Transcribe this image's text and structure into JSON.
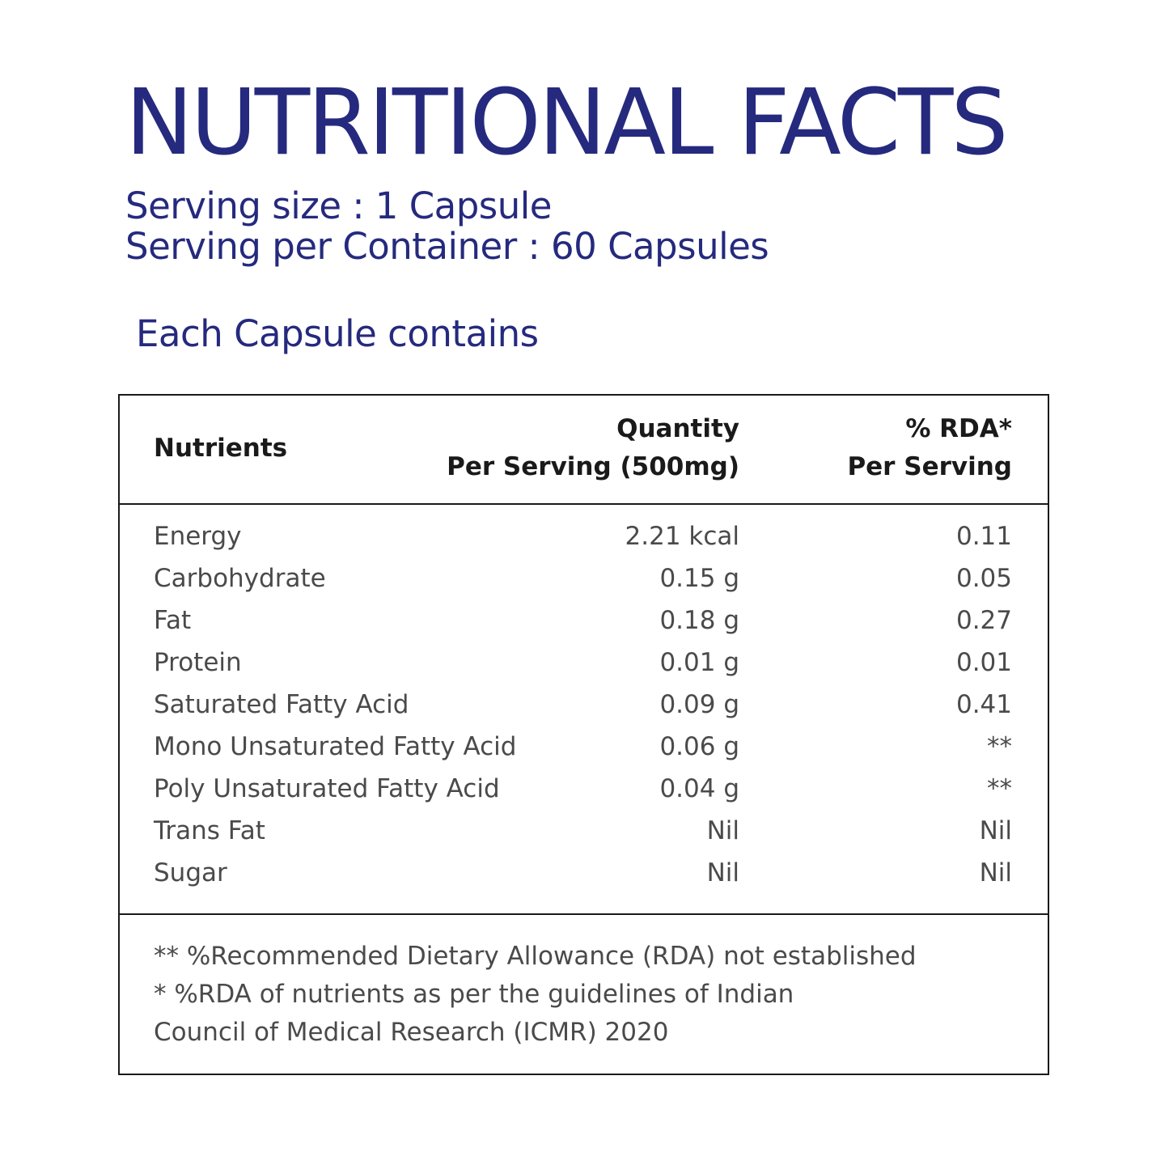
{
  "title": "NUTRITIONAL FACTS",
  "serving_size": "Serving size : 1 Capsule",
  "servings_per_container": "Serving per Container : 60 Capsules",
  "each_capsule": "Each Capsule contains",
  "colors": {
    "title": "#252a7e",
    "text": "#4a4a4a",
    "header_text": "#1a1a1a",
    "border": "#1a1a1a"
  },
  "table": {
    "headers": {
      "nutrients": "Nutrients",
      "quantity_line1": "Quantity",
      "quantity_line2": "Per Serving (500mg)",
      "rda_line1": "% RDA*",
      "rda_line2": "Per Serving"
    },
    "rows": [
      {
        "nutrient": "Energy",
        "quantity": "2.21 kcal",
        "rda": "0.11"
      },
      {
        "nutrient": "Carbohydrate",
        "quantity": "0.15 g",
        "rda": "0.05"
      },
      {
        "nutrient": "Fat",
        "quantity": "0.18 g",
        "rda": "0.27"
      },
      {
        "nutrient": "Protein",
        "quantity": "0.01 g",
        "rda": "0.01"
      },
      {
        "nutrient": "Saturated Fatty Acid",
        "quantity": "0.09 g",
        "rda": "0.41"
      },
      {
        "nutrient": "Mono Unsaturated Fatty Acid",
        "quantity": "0.06 g",
        "rda": "**"
      },
      {
        "nutrient": "Poly Unsaturated Fatty Acid",
        "quantity": "0.04 g",
        "rda": "**"
      },
      {
        "nutrient": "Trans Fat",
        "quantity": "Nil",
        "rda": "Nil"
      },
      {
        "nutrient": "Sugar",
        "quantity": "Nil",
        "rda": "Nil"
      }
    ],
    "footnotes": [
      "** %Recommended Dietary Allowance (RDA) not established",
      "* %RDA of nutrients as per the guidelines of Indian",
      "Council of Medical Research (ICMR) 2020"
    ]
  }
}
